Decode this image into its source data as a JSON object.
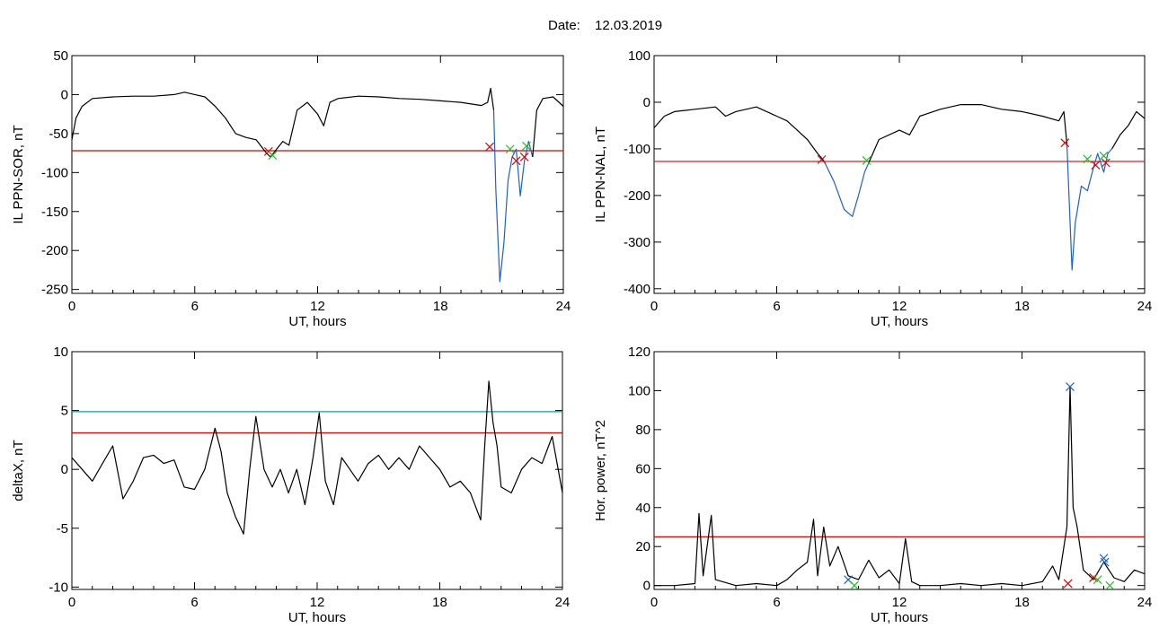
{
  "figure": {
    "date_label": "Date:",
    "date_value": "12.03.2019"
  },
  "colors": {
    "black": "#000000",
    "red": "#e00000",
    "blue": "#1f5fd6",
    "green": "#20c020",
    "teal": "#1a9a9a"
  },
  "chart_data": [
    {
      "id": "p1",
      "type": "line",
      "xlabel": "UT, hours",
      "ylabel": "IL PPN-SOR, nT",
      "xlim": [
        0,
        24
      ],
      "ylim": [
        -255,
        50
      ],
      "xticks": [
        0,
        6,
        12,
        18,
        24
      ],
      "yticks": [
        50,
        0,
        -50,
        -100,
        -150,
        -200,
        -250
      ],
      "series": [
        {
          "color": "black",
          "points": [
            [
              0,
              -58
            ],
            [
              0.2,
              -30
            ],
            [
              0.5,
              -15
            ],
            [
              1,
              -5
            ],
            [
              2,
              -3
            ],
            [
              3,
              -2
            ],
            [
              4,
              -2
            ],
            [
              5,
              0
            ],
            [
              5.5,
              3
            ],
            [
              6,
              0
            ],
            [
              6.5,
              -3
            ],
            [
              7,
              -15
            ],
            [
              7.5,
              -30
            ],
            [
              8,
              -50
            ],
            [
              8.5,
              -55
            ],
            [
              9,
              -58
            ],
            [
              9.5,
              -75
            ],
            [
              9.7,
              -80
            ],
            [
              10,
              -70
            ],
            [
              10.3,
              -60
            ],
            [
              10.6,
              -65
            ],
            [
              11,
              -20
            ],
            [
              11.5,
              -10
            ],
            [
              12,
              -25
            ],
            [
              12.3,
              -40
            ],
            [
              12.6,
              -10
            ],
            [
              13,
              -5
            ],
            [
              14,
              -2
            ],
            [
              15,
              -3
            ],
            [
              16,
              -5
            ],
            [
              17,
              -6
            ],
            [
              18,
              -8
            ],
            [
              19,
              -10
            ],
            [
              20,
              -14
            ],
            [
              20.3,
              -10
            ],
            [
              20.45,
              8
            ],
            [
              20.6,
              -20
            ]
          ]
        },
        {
          "color": "blue",
          "points": [
            [
              20.6,
              -20
            ],
            [
              20.7,
              -120
            ],
            [
              20.9,
              -240
            ],
            [
              21.1,
              -190
            ],
            [
              21.3,
              -110
            ],
            [
              21.5,
              -80
            ],
            [
              21.7,
              -70
            ],
            [
              21.9,
              -130
            ],
            [
              22.1,
              -85
            ],
            [
              22.3,
              -60
            ],
            [
              22.5,
              -80
            ]
          ]
        },
        {
          "color": "black",
          "points": [
            [
              22.5,
              -80
            ],
            [
              22.7,
              -20
            ],
            [
              23,
              -5
            ],
            [
              23.5,
              -3
            ],
            [
              24,
              -15
            ]
          ]
        }
      ],
      "hlines": [
        {
          "y": -72,
          "color": "red"
        }
      ],
      "markers": [
        {
          "x": 9.6,
          "y": -73,
          "color": "red"
        },
        {
          "x": 9.8,
          "y": -78,
          "color": "green"
        },
        {
          "x": 20.4,
          "y": -67,
          "color": "red"
        },
        {
          "x": 21.4,
          "y": -70,
          "color": "green"
        },
        {
          "x": 21.7,
          "y": -85,
          "color": "red"
        },
        {
          "x": 22.1,
          "y": -80,
          "color": "red"
        },
        {
          "x": 22.2,
          "y": -66,
          "color": "green"
        }
      ]
    },
    {
      "id": "p2",
      "type": "line",
      "xlabel": "UT, hours",
      "ylabel": "IL PPN-NAL, nT",
      "xlim": [
        0,
        24
      ],
      "ylim": [
        -410,
        100
      ],
      "xticks": [
        0,
        6,
        12,
        18,
        24
      ],
      "yticks": [
        100,
        0,
        -100,
        -200,
        -300,
        -400
      ],
      "series": [
        {
          "color": "black",
          "points": [
            [
              0,
              -55
            ],
            [
              0.5,
              -30
            ],
            [
              1,
              -20
            ],
            [
              2,
              -15
            ],
            [
              3,
              -10
            ],
            [
              3.5,
              -30
            ],
            [
              4,
              -20
            ],
            [
              5,
              -10
            ],
            [
              6,
              -30
            ],
            [
              6.5,
              -40
            ],
            [
              7,
              -60
            ],
            [
              7.5,
              -80
            ],
            [
              8,
              -110
            ],
            [
              8.3,
              -125
            ]
          ]
        },
        {
          "color": "blue",
          "points": [
            [
              8.3,
              -125
            ],
            [
              8.8,
              -170
            ],
            [
              9.3,
              -230
            ],
            [
              9.7,
              -245
            ],
            [
              10,
              -200
            ],
            [
              10.3,
              -150
            ],
            [
              10.5,
              -130
            ]
          ]
        },
        {
          "color": "black",
          "points": [
            [
              10.5,
              -130
            ],
            [
              11,
              -80
            ],
            [
              12,
              -60
            ],
            [
              12.5,
              -70
            ],
            [
              13,
              -30
            ],
            [
              14,
              -15
            ],
            [
              15,
              -5
            ],
            [
              16,
              -5
            ],
            [
              17,
              -15
            ],
            [
              18,
              -20
            ],
            [
              19,
              -30
            ],
            [
              19.8,
              -40
            ],
            [
              20.05,
              -20
            ],
            [
              20.2,
              -90
            ]
          ]
        },
        {
          "color": "blue",
          "points": [
            [
              20.2,
              -90
            ],
            [
              20.3,
              -200
            ],
            [
              20.45,
              -360
            ],
            [
              20.6,
              -260
            ],
            [
              20.9,
              -180
            ],
            [
              21.2,
              -190
            ],
            [
              21.5,
              -140
            ],
            [
              21.7,
              -110
            ],
            [
              22,
              -150
            ],
            [
              22.2,
              -110
            ],
            [
              22.4,
              -100
            ]
          ]
        },
        {
          "color": "black",
          "points": [
            [
              22.4,
              -100
            ],
            [
              22.8,
              -70
            ],
            [
              23.2,
              -50
            ],
            [
              23.6,
              -20
            ],
            [
              24,
              -35
            ]
          ]
        }
      ],
      "hlines": [
        {
          "y": -127,
          "color": "red"
        }
      ],
      "markers": [
        {
          "x": 8.2,
          "y": -123,
          "color": "red"
        },
        {
          "x": 10.4,
          "y": -125,
          "color": "green"
        },
        {
          "x": 20.1,
          "y": -87,
          "color": "red"
        },
        {
          "x": 21.2,
          "y": -122,
          "color": "green"
        },
        {
          "x": 21.6,
          "y": -135,
          "color": "red"
        },
        {
          "x": 22.0,
          "y": -115,
          "color": "green"
        },
        {
          "x": 22.1,
          "y": -130,
          "color": "red"
        }
      ]
    },
    {
      "id": "p3",
      "type": "line",
      "xlabel": "UT, hours",
      "ylabel": "deltaX, nT",
      "xlim": [
        0,
        24
      ],
      "ylim": [
        -10.2,
        10
      ],
      "xticks": [
        0,
        6,
        12,
        18,
        24
      ],
      "yticks": [
        10,
        5,
        0,
        -5,
        -10
      ],
      "series": [
        {
          "color": "black",
          "points": [
            [
              0,
              1
            ],
            [
              0.5,
              0
            ],
            [
              1,
              -1
            ],
            [
              1.5,
              0.5
            ],
            [
              2,
              2
            ],
            [
              2.5,
              -2.5
            ],
            [
              3,
              -1
            ],
            [
              3.5,
              1
            ],
            [
              4,
              1.2
            ],
            [
              4.5,
              0.5
            ],
            [
              5,
              0.8
            ],
            [
              5.5,
              -1.5
            ],
            [
              6,
              -1.7
            ],
            [
              6.5,
              0
            ],
            [
              7,
              3.5
            ],
            [
              7.3,
              1.5
            ],
            [
              7.6,
              -2
            ],
            [
              8,
              -4
            ],
            [
              8.4,
              -5.5
            ],
            [
              8.7,
              0
            ],
            [
              9,
              4.5
            ],
            [
              9.4,
              0
            ],
            [
              9.8,
              -1.5
            ],
            [
              10.2,
              0
            ],
            [
              10.6,
              -2
            ],
            [
              11,
              0
            ],
            [
              11.4,
              -3
            ],
            [
              11.8,
              1
            ],
            [
              12.1,
              4.8
            ],
            [
              12.4,
              -1
            ],
            [
              12.8,
              -3
            ],
            [
              13.2,
              1
            ],
            [
              13.6,
              0
            ],
            [
              14,
              -1
            ],
            [
              14.5,
              0.5
            ],
            [
              15,
              1.2
            ],
            [
              15.5,
              0
            ],
            [
              16,
              1
            ],
            [
              16.5,
              0
            ],
            [
              17,
              2
            ],
            [
              17.5,
              1
            ],
            [
              18,
              0
            ],
            [
              18.5,
              -1.5
            ],
            [
              19,
              -1
            ],
            [
              19.5,
              -2
            ],
            [
              20,
              -4.3
            ],
            [
              20.2,
              2
            ],
            [
              20.4,
              7.5
            ],
            [
              20.6,
              4
            ],
            [
              20.8,
              2
            ],
            [
              21,
              -1.5
            ],
            [
              21.5,
              -2
            ],
            [
              22,
              0
            ],
            [
              22.5,
              1
            ],
            [
              23,
              0.5
            ],
            [
              23.5,
              2.8
            ],
            [
              24,
              -2
            ]
          ]
        }
      ],
      "hlines": [
        {
          "y": 4.9,
          "color": "teal"
        },
        {
          "y": 3.1,
          "color": "red"
        }
      ],
      "markers": []
    },
    {
      "id": "p4",
      "type": "line",
      "xlabel": "UT, hours",
      "ylabel": "Hor. power, nT^2",
      "xlim": [
        0,
        24
      ],
      "ylim": [
        -2,
        120
      ],
      "xticks": [
        0,
        6,
        12,
        18,
        24
      ],
      "yticks": [
        120,
        100,
        80,
        60,
        40,
        20,
        0
      ],
      "series": [
        {
          "color": "black",
          "points": [
            [
              0,
              0
            ],
            [
              1,
              0
            ],
            [
              2,
              1
            ],
            [
              2.2,
              37
            ],
            [
              2.4,
              5
            ],
            [
              2.8,
              36
            ],
            [
              3,
              3
            ],
            [
              4,
              0
            ],
            [
              5,
              1
            ],
            [
              6,
              0
            ],
            [
              6.5,
              3
            ],
            [
              7,
              8
            ],
            [
              7.5,
              12
            ],
            [
              7.8,
              34
            ],
            [
              8,
              5
            ],
            [
              8.3,
              30
            ],
            [
              8.6,
              10
            ],
            [
              9,
              20
            ],
            [
              9.5,
              5
            ],
            [
              10,
              3
            ],
            [
              10.5,
              13
            ],
            [
              11,
              4
            ],
            [
              11.5,
              8
            ],
            [
              12,
              1
            ],
            [
              12.3,
              24
            ],
            [
              12.6,
              2
            ],
            [
              13,
              0
            ],
            [
              14,
              0
            ],
            [
              15,
              1
            ],
            [
              16,
              0
            ],
            [
              17,
              1
            ],
            [
              18,
              0
            ],
            [
              19,
              2
            ],
            [
              19.5,
              10
            ],
            [
              19.8,
              3
            ],
            [
              20.2,
              30
            ],
            [
              20.35,
              102
            ],
            [
              20.5,
              40
            ],
            [
              20.7,
              30
            ],
            [
              21,
              8
            ],
            [
              21.5,
              3
            ],
            [
              22,
              12
            ],
            [
              22.5,
              4
            ],
            [
              23,
              2
            ],
            [
              23.5,
              8
            ],
            [
              24,
              6
            ]
          ]
        }
      ],
      "hlines": [
        {
          "y": 25,
          "color": "red"
        }
      ],
      "markers": [
        {
          "x": 20.35,
          "y": 102,
          "color": "blue"
        },
        {
          "x": 20.25,
          "y": 1,
          "color": "red"
        },
        {
          "x": 9.5,
          "y": 3,
          "color": "blue"
        },
        {
          "x": 9.8,
          "y": 0,
          "color": "green"
        },
        {
          "x": 21.5,
          "y": 4,
          "color": "red"
        },
        {
          "x": 21.7,
          "y": 3,
          "color": "green"
        },
        {
          "x": 22.0,
          "y": 14,
          "color": "blue"
        },
        {
          "x": 22.05,
          "y": 12,
          "color": "blue"
        },
        {
          "x": 22.3,
          "y": 0,
          "color": "green"
        }
      ]
    }
  ]
}
